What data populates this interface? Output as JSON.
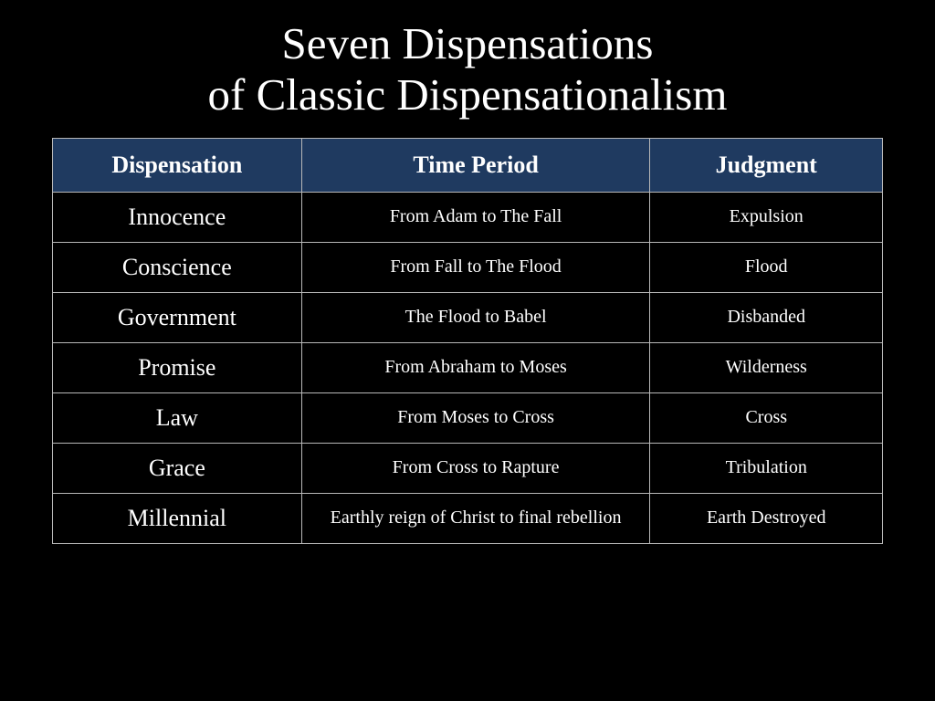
{
  "title_line1": "Seven Dispensations",
  "title_line2": "of Classic Dispensationalism",
  "table": {
    "type": "table",
    "background_color": "#000000",
    "header_bg_color": "#1f3a60",
    "header_text_color": "#ffffff",
    "cell_text_color": "#ffffff",
    "border_color": "#b8b8b8",
    "title_fontsize": 49,
    "header_fontsize": 26,
    "dispensation_fontsize": 26,
    "body_fontsize": 20,
    "font_family": "Georgia, Times New Roman, serif",
    "columns": [
      {
        "label": "Dispensation",
        "width_pct": 30
      },
      {
        "label": "Time Period",
        "width_pct": 42
      },
      {
        "label": "Judgment",
        "width_pct": 28
      }
    ],
    "rows": [
      {
        "dispensation": "Innocence",
        "time_period": "From Adam to The Fall",
        "judgment": "Expulsion"
      },
      {
        "dispensation": "Conscience",
        "time_period": "From Fall to The Flood",
        "judgment": "Flood"
      },
      {
        "dispensation": "Government",
        "time_period": "The Flood to Babel",
        "judgment": "Disbanded"
      },
      {
        "dispensation": "Promise",
        "time_period": "From Abraham to Moses",
        "judgment": "Wilderness"
      },
      {
        "dispensation": "Law",
        "time_period": "From Moses to Cross",
        "judgment": "Cross"
      },
      {
        "dispensation": "Grace",
        "time_period": "From Cross to Rapture",
        "judgment": "Tribulation"
      },
      {
        "dispensation": "Millennial",
        "time_period": "Earthly reign of Christ to final rebellion",
        "judgment": "Earth Destroyed"
      }
    ]
  }
}
